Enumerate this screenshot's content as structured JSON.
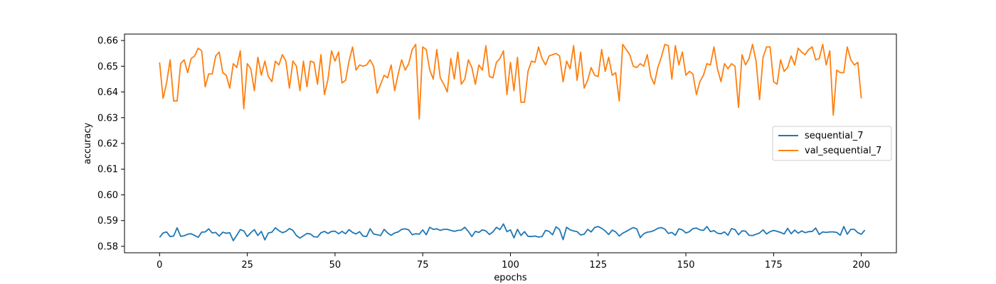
{
  "chart_data": {
    "type": "line",
    "title": "",
    "xlabel": "epochs",
    "ylabel": "accuracy",
    "xlim": [
      -10,
      210
    ],
    "ylim": [
      0.5775,
      0.6625
    ],
    "xticks": [
      0,
      25,
      50,
      75,
      100,
      125,
      150,
      175,
      200
    ],
    "xtick_labels": [
      "0",
      "25",
      "50",
      "75",
      "100",
      "125",
      "150",
      "175",
      "200"
    ],
    "yticks": [
      0.58,
      0.59,
      0.6,
      0.61,
      0.62,
      0.63,
      0.64,
      0.65,
      0.66
    ],
    "ytick_labels": [
      "0.58",
      "0.59",
      "0.60",
      "0.61",
      "0.62",
      "0.63",
      "0.64",
      "0.65",
      "0.66"
    ],
    "grid": false,
    "legend_position": "right",
    "series": [
      {
        "name": "sequential_7",
        "color": "#1f77b4",
        "x_start": 0,
        "x_step": 1,
        "values": [
          0.5835,
          0.5852,
          0.5856,
          0.5838,
          0.584,
          0.5872,
          0.5839,
          0.5841,
          0.5847,
          0.5849,
          0.5842,
          0.5835,
          0.5855,
          0.5856,
          0.5868,
          0.5852,
          0.5854,
          0.584,
          0.5855,
          0.5851,
          0.5853,
          0.5822,
          0.5843,
          0.5865,
          0.586,
          0.5838,
          0.5853,
          0.5865,
          0.5842,
          0.5858,
          0.5825,
          0.5852,
          0.5855,
          0.5872,
          0.5861,
          0.5853,
          0.5858,
          0.5869,
          0.5862,
          0.5842,
          0.5832,
          0.5841,
          0.585,
          0.5848,
          0.5837,
          0.5836,
          0.5853,
          0.5858,
          0.585,
          0.5858,
          0.5859,
          0.5849,
          0.5858,
          0.5849,
          0.5865,
          0.5854,
          0.5848,
          0.5857,
          0.584,
          0.5838,
          0.5868,
          0.5848,
          0.5845,
          0.5842,
          0.5866,
          0.5852,
          0.5843,
          0.5852,
          0.5856,
          0.5866,
          0.5868,
          0.5864,
          0.5845,
          0.5849,
          0.5847,
          0.5864,
          0.5845,
          0.5874,
          0.5866,
          0.5868,
          0.5862,
          0.5866,
          0.5866,
          0.5862,
          0.5858,
          0.5862,
          0.5863,
          0.5874,
          0.5858,
          0.5838,
          0.5858,
          0.5854,
          0.5864,
          0.586,
          0.5846,
          0.5856,
          0.5874,
          0.5865,
          0.5887,
          0.5857,
          0.5864,
          0.5833,
          0.5866,
          0.5842,
          0.5857,
          0.5839,
          0.5838,
          0.584,
          0.5836,
          0.5838,
          0.5862,
          0.5858,
          0.5845,
          0.5876,
          0.5865,
          0.5826,
          0.5874,
          0.5864,
          0.586,
          0.5857,
          0.5844,
          0.5847,
          0.5866,
          0.5856,
          0.5873,
          0.5877,
          0.587,
          0.586,
          0.5846,
          0.5863,
          0.5856,
          0.584,
          0.5851,
          0.5858,
          0.5866,
          0.5873,
          0.5868,
          0.5834,
          0.5849,
          0.5855,
          0.5857,
          0.5862,
          0.587,
          0.5873,
          0.5867,
          0.585,
          0.5854,
          0.5843,
          0.5868,
          0.5864,
          0.5852,
          0.5857,
          0.5869,
          0.5871,
          0.5864,
          0.5862,
          0.5877,
          0.5857,
          0.5861,
          0.5851,
          0.5849,
          0.5856,
          0.5843,
          0.5869,
          0.5865,
          0.5845,
          0.586,
          0.5859,
          0.5843,
          0.5842,
          0.5847,
          0.5852,
          0.5864,
          0.5848,
          0.5857,
          0.5862,
          0.5858,
          0.5854,
          0.5848,
          0.587,
          0.5849,
          0.5863,
          0.5851,
          0.586,
          0.5853,
          0.5857,
          0.5858,
          0.5871,
          0.5846,
          0.5856,
          0.5854,
          0.5856,
          0.5856,
          0.5854,
          0.5843,
          0.5877,
          0.5847,
          0.5866,
          0.5866,
          0.5853,
          0.5847,
          0.5863
        ]
      },
      {
        "name": "val_sequential_7",
        "color": "#ff7f0e",
        "x_start": 0,
        "x_step": 1,
        "values": [
          0.6515,
          0.6375,
          0.6435,
          0.6525,
          0.6365,
          0.6365,
          0.651,
          0.6525,
          0.6475,
          0.653,
          0.654,
          0.657,
          0.656,
          0.642,
          0.647,
          0.647,
          0.654,
          0.6555,
          0.6475,
          0.6465,
          0.6415,
          0.651,
          0.6495,
          0.656,
          0.6335,
          0.651,
          0.649,
          0.6405,
          0.6535,
          0.6465,
          0.652,
          0.646,
          0.644,
          0.652,
          0.6505,
          0.6545,
          0.652,
          0.6415,
          0.652,
          0.65,
          0.6405,
          0.652,
          0.642,
          0.652,
          0.6515,
          0.643,
          0.6545,
          0.639,
          0.645,
          0.656,
          0.652,
          0.6555,
          0.6435,
          0.6445,
          0.652,
          0.6575,
          0.6485,
          0.6505,
          0.65,
          0.6505,
          0.6525,
          0.65,
          0.6395,
          0.643,
          0.6465,
          0.6455,
          0.6505,
          0.6405,
          0.647,
          0.6525,
          0.6485,
          0.651,
          0.6565,
          0.6585,
          0.6295,
          0.6575,
          0.6565,
          0.6485,
          0.645,
          0.6565,
          0.6455,
          0.643,
          0.64,
          0.653,
          0.645,
          0.6555,
          0.643,
          0.645,
          0.6525,
          0.6495,
          0.643,
          0.6505,
          0.6485,
          0.658,
          0.646,
          0.6455,
          0.6515,
          0.653,
          0.656,
          0.639,
          0.6515,
          0.6405,
          0.6535,
          0.636,
          0.636,
          0.648,
          0.652,
          0.6515,
          0.6575,
          0.653,
          0.6505,
          0.654,
          0.6545,
          0.655,
          0.654,
          0.644,
          0.652,
          0.649,
          0.658,
          0.6445,
          0.6555,
          0.6415,
          0.6445,
          0.6495,
          0.6465,
          0.646,
          0.6565,
          0.648,
          0.6535,
          0.6465,
          0.6475,
          0.6365,
          0.6585,
          0.6565,
          0.6545,
          0.65,
          0.6495,
          0.651,
          0.65,
          0.6545,
          0.646,
          0.643,
          0.6495,
          0.6535,
          0.6585,
          0.658,
          0.645,
          0.658,
          0.6505,
          0.6555,
          0.6465,
          0.648,
          0.647,
          0.639,
          0.644,
          0.6465,
          0.651,
          0.6505,
          0.6575,
          0.649,
          0.644,
          0.651,
          0.649,
          0.651,
          0.65,
          0.634,
          0.6545,
          0.6505,
          0.653,
          0.6585,
          0.652,
          0.637,
          0.6535,
          0.6575,
          0.6575,
          0.644,
          0.643,
          0.6525,
          0.648,
          0.6495,
          0.654,
          0.6505,
          0.657,
          0.6555,
          0.6545,
          0.6565,
          0.6575,
          0.6525,
          0.653,
          0.6585,
          0.6505,
          0.656,
          0.631,
          0.6485,
          0.6475,
          0.6475,
          0.6575,
          0.6525,
          0.6505,
          0.6515,
          0.6375
        ]
      }
    ]
  }
}
